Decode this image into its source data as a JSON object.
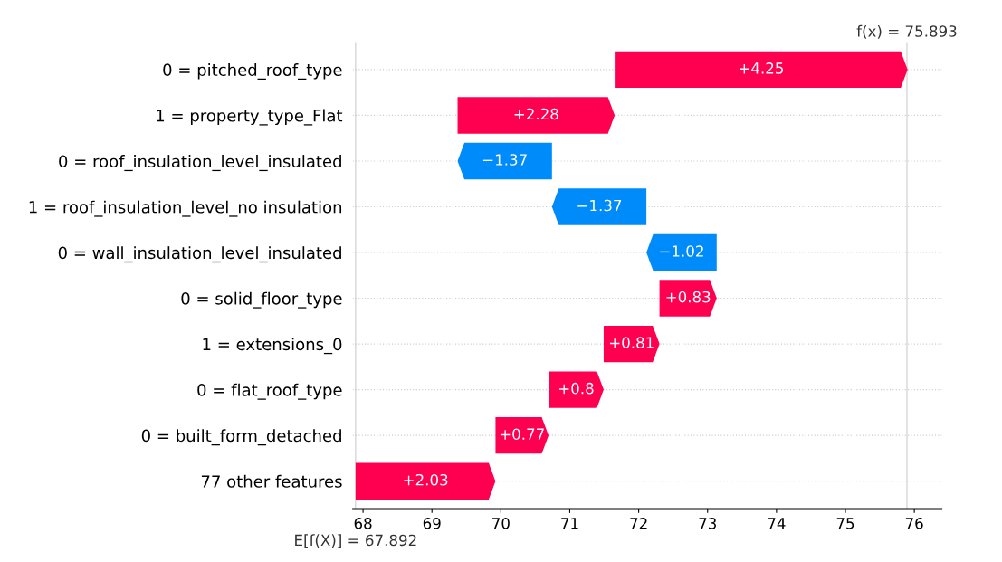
{
  "chart_data": {
    "type": "bar",
    "orientation": "horizontal",
    "categories": [
      "0 = pitched_roof_type",
      "1 = property_type_Flat",
      "0 = roof_insulation_level_insulated",
      "1 = roof_insulation_level_no insulation",
      "0 = wall_insulation_level_insulated",
      "0 = solid_floor_type",
      "1 = extensions_0",
      "0 = flat_roof_type",
      "0 = built_form_detached",
      "77 other features"
    ],
    "values": [
      4.25,
      2.28,
      -1.37,
      -1.37,
      -1.02,
      0.83,
      0.81,
      0.8,
      0.77,
      2.03
    ],
    "base": [
      71.652,
      69.372,
      70.742,
      72.112,
      73.132,
      72.302,
      71.492,
      70.692,
      69.922,
      67.892
    ],
    "colors": [
      "#ff0051",
      "#ff0051",
      "#008bfb",
      "#008bfb",
      "#008bfb",
      "#ff0051",
      "#ff0051",
      "#ff0051",
      "#ff0051",
      "#ff0051"
    ],
    "value_labels": [
      "+4.25",
      "+2.28",
      "−1.37",
      "−1.37",
      "−1.02",
      "+0.83",
      "+0.81",
      "+0.8",
      "+0.77",
      "+2.03"
    ],
    "xlim": [
      67.85,
      76.4
    ],
    "xticks": [
      68,
      69,
      70,
      71,
      72,
      73,
      74,
      75,
      76
    ],
    "ref_lines": [
      {
        "axis": "x",
        "value": 75.893,
        "label": "f(x) = 75.893",
        "color": "#cccccc"
      },
      {
        "axis": "x",
        "value": 67.892,
        "label": "E[f(X)] = 67.892",
        "color": "#cccccc"
      }
    ],
    "grid": "y"
  }
}
